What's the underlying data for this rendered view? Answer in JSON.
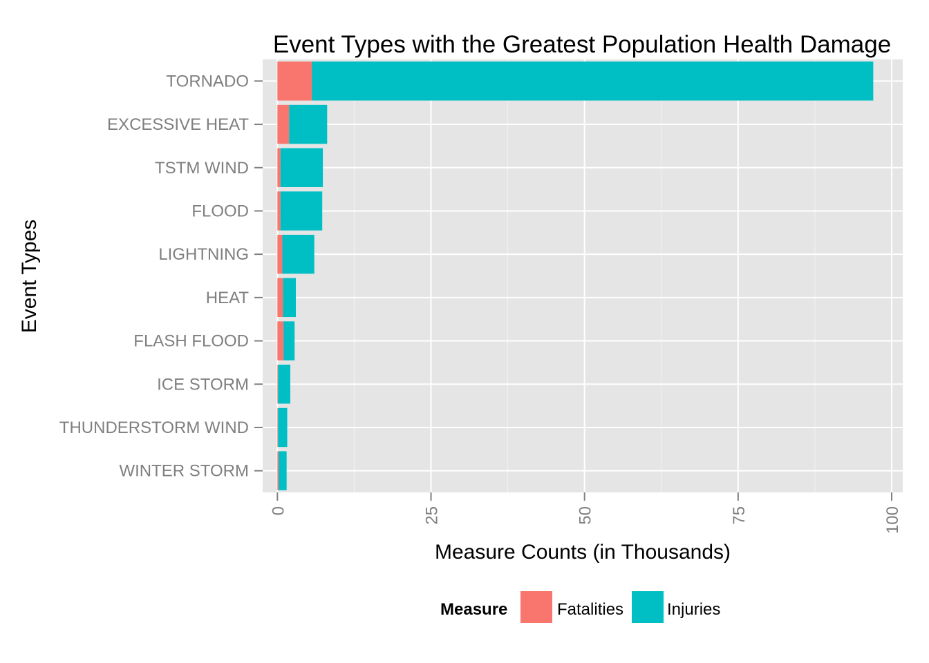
{
  "chart_data": {
    "type": "bar",
    "orientation": "horizontal",
    "stacked": true,
    "title": "Event Types with the Greatest Population Health Damage",
    "xlabel": "Measure Counts (in Thousands)",
    "ylabel": "Event Types",
    "xlim": [
      -2.4,
      101.8
    ],
    "x_ticks": [
      0,
      25,
      50,
      75,
      100
    ],
    "x_tick_labels": [
      "0",
      "25",
      "50",
      "75",
      "100"
    ],
    "grid": true,
    "categories": [
      "TORNADO",
      "EXCESSIVE HEAT",
      "TSTM WIND",
      "FLOOD",
      "LIGHTNING",
      "HEAT",
      "FLASH FLOOD",
      "ICE STORM",
      "THUNDERSTORM WIND",
      "WINTER STORM"
    ],
    "series": [
      {
        "name": "Fatalities",
        "color": "#F8766D",
        "values": [
          5.6,
          1.9,
          0.5,
          0.5,
          0.8,
          0.9,
          1.0,
          0.1,
          0.1,
          0.2
        ]
      },
      {
        "name": "Injuries",
        "color": "#00BFC4",
        "values": [
          91.4,
          6.2,
          6.9,
          6.8,
          5.2,
          2.1,
          1.8,
          2.0,
          1.5,
          1.3
        ]
      }
    ],
    "legend": {
      "title": "Measure",
      "position": "bottom"
    }
  }
}
